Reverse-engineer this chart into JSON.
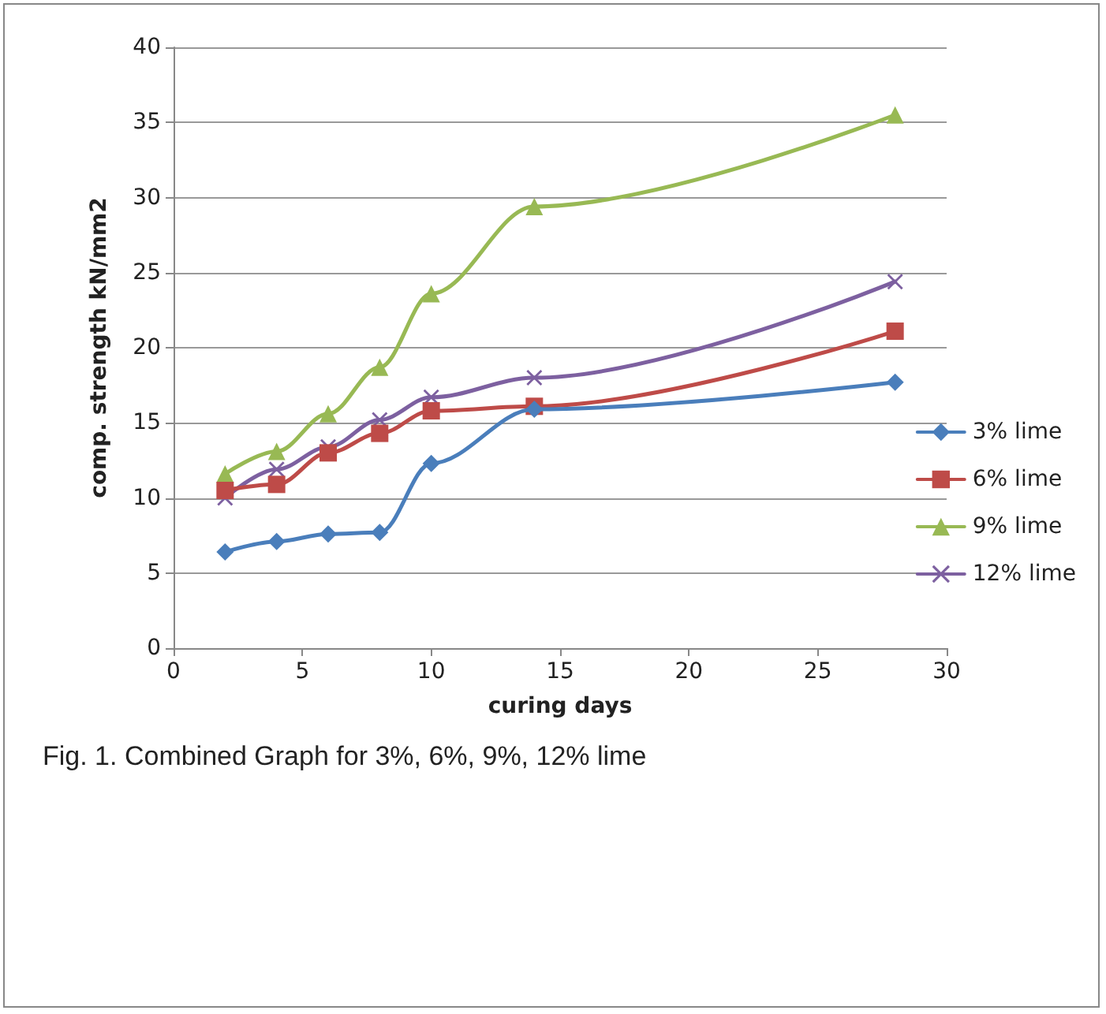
{
  "chart_data": {
    "type": "line",
    "xlabel": "curing days",
    "ylabel": "comp. strength kN/mm2",
    "x": [
      2,
      4,
      6,
      8,
      10,
      14,
      28
    ],
    "series": [
      {
        "name": "3% lime",
        "color": "#4a7ebb",
        "marker": "diamond",
        "values": [
          6.4,
          7.1,
          7.6,
          7.7,
          12.3,
          15.9,
          17.7
        ]
      },
      {
        "name": "6% lime",
        "color": "#be4b48",
        "marker": "square",
        "values": [
          10.5,
          10.9,
          13,
          14.3,
          15.8,
          16.1,
          21.1
        ]
      },
      {
        "name": "9% lime",
        "color": "#98b954",
        "marker": "triangle",
        "values": [
          11.6,
          13.1,
          15.6,
          18.7,
          23.6,
          29.4,
          35.5
        ]
      },
      {
        "name": "12% lime",
        "color": "#7d60a0",
        "marker": "cross",
        "values": [
          10,
          11.9,
          13.4,
          15.2,
          16.7,
          18,
          24.4
        ]
      }
    ],
    "xlim": [
      0,
      30
    ],
    "xticks": [
      0,
      5,
      10,
      15,
      20,
      25,
      30
    ],
    "ylim": [
      0,
      40
    ],
    "yticks": [
      0,
      5,
      10,
      15,
      20,
      25,
      30,
      35,
      40
    ],
    "grid": "y",
    "legend": "right",
    "line_style": "solid",
    "annotations": [
      "Fig. 1. Combined Graph for 3%, 6%, 9%, 12% lime"
    ]
  }
}
